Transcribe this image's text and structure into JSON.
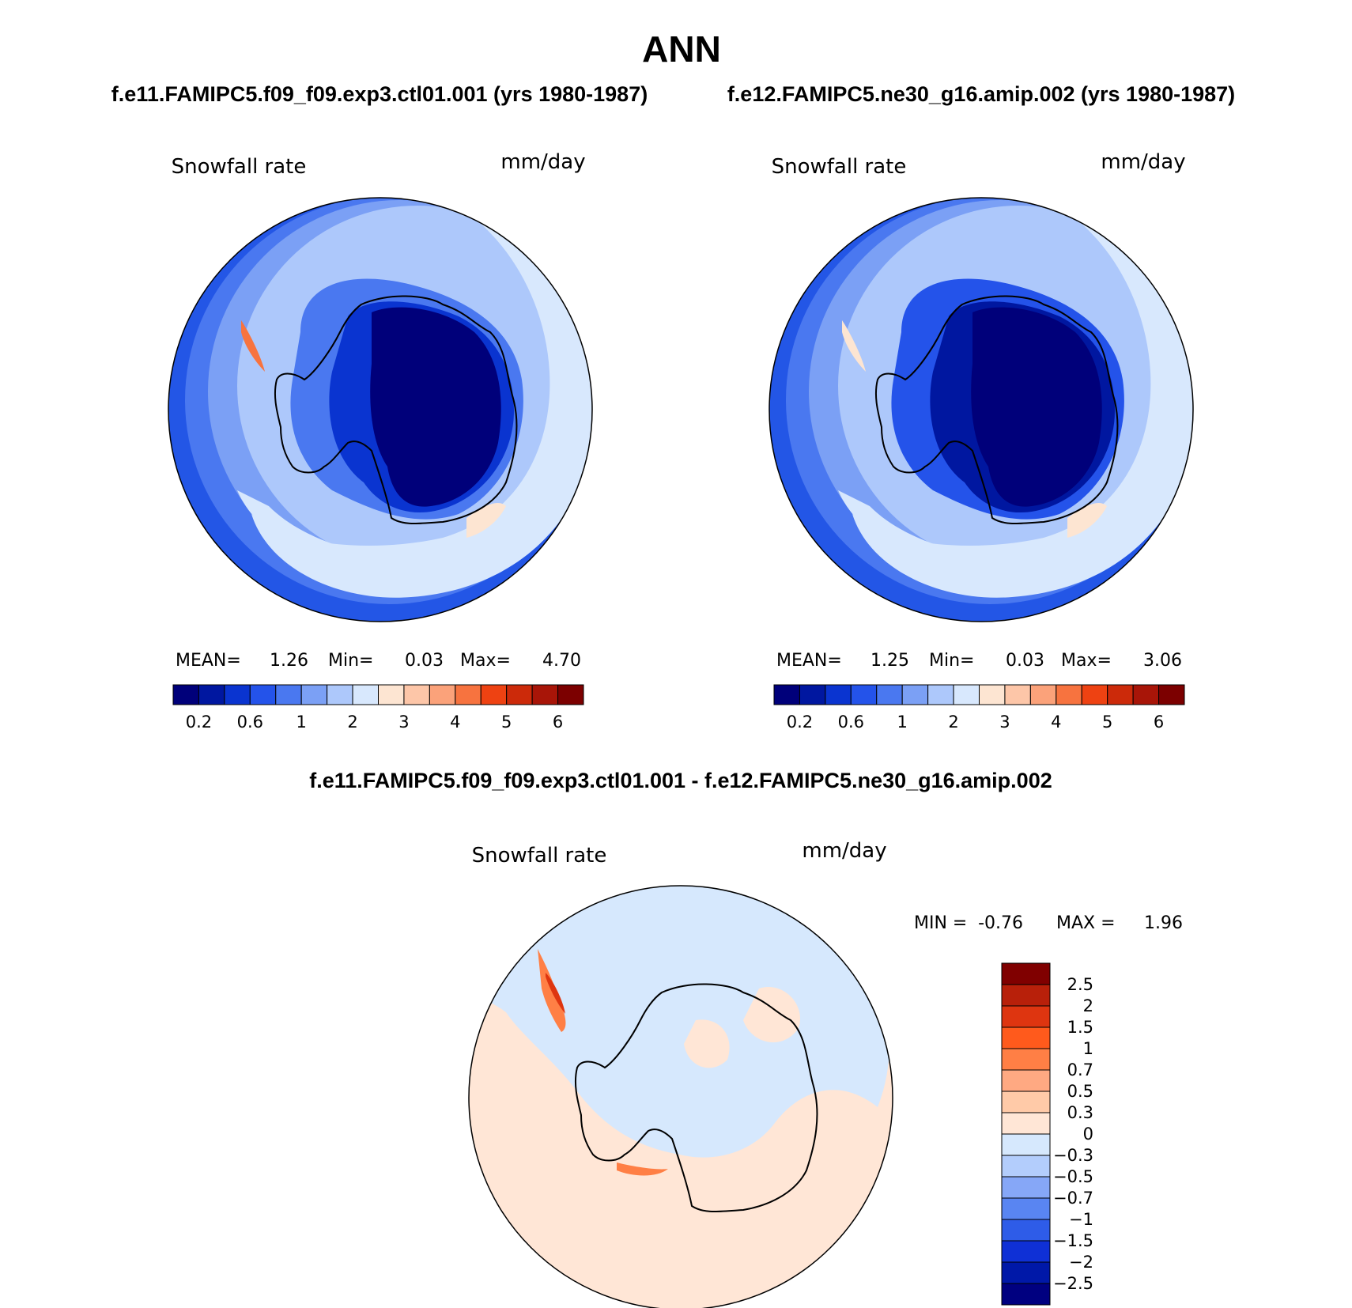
{
  "chart_data": [
    {
      "type": "heatmap",
      "name": "model1",
      "title": "f.e11.FAMIPC5.f09_f09.exp3.ctl01.001 (yrs 1980-1987)",
      "left_label": "Snowfall rate",
      "right_label": "mm/day",
      "mean_label": "MEAN=",
      "mean": "1.26",
      "min_label": "Min=",
      "min": "0.03",
      "max_label": "Max=",
      "max": "4.70",
      "colorbar_ticks": [
        "0.2",
        "0.6",
        "1",
        "2",
        "3",
        "4",
        "5",
        "6"
      ]
    },
    {
      "type": "heatmap",
      "name": "model2",
      "title": "f.e12.FAMIPC5.ne30_g16.amip.002 (yrs 1980-1987)",
      "left_label": "Snowfall rate",
      "right_label": "mm/day",
      "mean_label": "MEAN=",
      "mean": "1.25",
      "min_label": "Min=",
      "min": "0.03",
      "max_label": "Max=",
      "max": "3.06",
      "colorbar_ticks": [
        "0.2",
        "0.6",
        "1",
        "2",
        "3",
        "4",
        "5",
        "6"
      ]
    },
    {
      "type": "heatmap",
      "name": "difference",
      "title": "f.e11.FAMIPC5.f09_f09.exp3.ctl01.001 - f.e12.FAMIPC5.ne30_g16.amip.002",
      "left_label": "Snowfall rate",
      "right_label": "mm/day",
      "min_label": "MIN =",
      "min": "-0.76",
      "max_label": "MAX =",
      "max": "1.96",
      "colorbar_ticks": [
        "2.5",
        "2",
        "1.5",
        "1",
        "0.7",
        "0.5",
        "0.3",
        "0",
        "-0.3",
        "-0.5",
        "-0.7",
        "-1",
        "-1.5",
        "-2",
        "-2.5"
      ]
    }
  ],
  "header": {
    "season": "ANN"
  },
  "colors": {
    "seq": [
      "#00007a",
      "#0017a0",
      "#0a34d0",
      "#2453ea",
      "#4a78f0",
      "#7ba0f5",
      "#adc8fb",
      "#d8e8fd",
      "#fde5d2",
      "#fdc6a8",
      "#fba27a",
      "#f7733f",
      "#ee4212",
      "#cc2a0a",
      "#a81508",
      "#7c0000"
    ],
    "div": [
      "#800000",
      "#b8200a",
      "#de3510",
      "#ff5a1c",
      "#ff7f45",
      "#ffa982",
      "#ffcaa8",
      "#ffe6d6",
      "#d6e8fd",
      "#b3cdfc",
      "#86a7f7",
      "#5985f2",
      "#2e5ce8",
      "#0f30d6",
      "#0018a8",
      "#000080"
    ]
  }
}
